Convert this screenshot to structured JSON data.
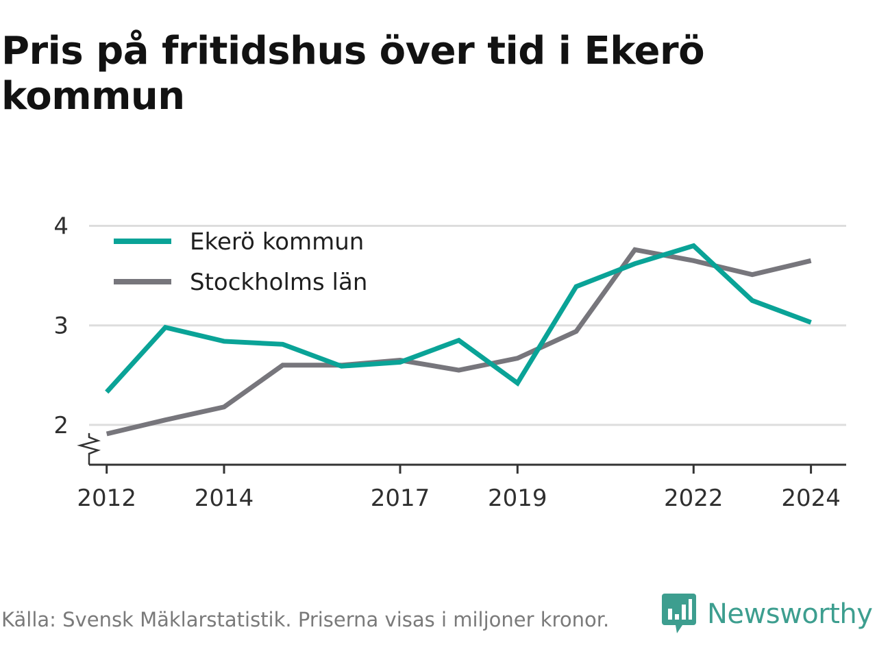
{
  "title": "Pris på fritidshus över tid i Ekerö kommun",
  "footer": {
    "source": "Källa: Svensk Mäklarstatistik. Priserna visas i miljoner kronor.",
    "brand": "Newsworthy",
    "logo_icon": "bar-chart-speech-bubble-icon"
  },
  "colors": {
    "ekero": "#0aa397",
    "stockholm": "#77767c",
    "grid": "#dddddd",
    "axis": "#333333",
    "brand": "#3d9e8f"
  },
  "chart_data": {
    "type": "line",
    "title": "Pris på fritidshus över tid i Ekerö kommun",
    "xlabel": "",
    "ylabel": "",
    "x": [
      2012,
      2013,
      2014,
      2015,
      2016,
      2017,
      2018,
      2019,
      2020,
      2021,
      2022,
      2023,
      2024
    ],
    "x_ticks": [
      2012,
      2014,
      2017,
      2019,
      2022,
      2024
    ],
    "y_ticks": [
      2,
      3,
      4
    ],
    "ylim": [
      1.6,
      4.1
    ],
    "axis_break": true,
    "grid": "horizontal",
    "legend_position": "top-left",
    "series": [
      {
        "name": "Ekerö kommun",
        "color": "#0aa397",
        "values": [
          2.33,
          2.98,
          2.84,
          2.81,
          2.59,
          2.63,
          2.85,
          2.42,
          3.39,
          3.62,
          3.8,
          3.25,
          3.03
        ]
      },
      {
        "name": "Stockholms län",
        "color": "#77767c",
        "values": [
          1.91,
          2.05,
          2.18,
          2.6,
          2.6,
          2.65,
          2.55,
          2.67,
          2.94,
          3.76,
          3.65,
          3.51,
          3.65
        ]
      }
    ]
  }
}
